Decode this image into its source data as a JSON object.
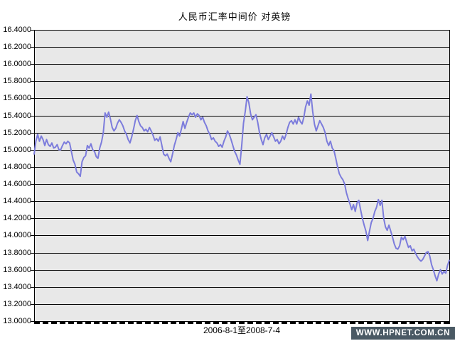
{
  "title": "人民币汇率中间价  对英镑",
  "x_axis_label": "2006-8-1至2008-7-4",
  "watermark": "WWW.HPNET.COM.CN",
  "colors": {
    "line": "#7c7cdc",
    "plot_bg": "#e8e8e8",
    "grid": "#000000",
    "frame": "#000000",
    "watermark_bg": "#4a5964",
    "watermark_text": "#ffffff"
  },
  "y_axis_labels": [
    "16.4000",
    "16.2000",
    "16.0000",
    "15.8000",
    "15.6000",
    "15.4000",
    "15.2000",
    "15.0000",
    "14.8000",
    "14.6000",
    "14.4000",
    "14.2000",
    "14.0000",
    "13.8000",
    "13.6000",
    "13.4000",
    "13.2000",
    "13.0000"
  ],
  "chart_data": {
    "type": "line",
    "title": "人民币汇率中间价  对英镑",
    "xlabel": "2006-8-1至2008-7-4",
    "ylabel": "",
    "ylim": [
      13.0,
      16.4
    ],
    "ytick_step": 0.2,
    "grid": "horizontal",
    "legend": "none",
    "x_unit": "trading days from 2006-8-1 to 2008-7-4 (uniformly spaced samples)",
    "series": [
      {
        "name": "人民币汇率中间价(对英镑)",
        "values": [
          14.95,
          15.1,
          15.18,
          15.1,
          15.16,
          15.12,
          15.05,
          15.12,
          15.06,
          15.04,
          15.08,
          15.02,
          15.03,
          15.06,
          15.0,
          15.0,
          15.05,
          15.09,
          15.07,
          15.1,
          15.08,
          14.98,
          14.88,
          14.83,
          14.74,
          14.72,
          14.69,
          14.86,
          14.91,
          14.93,
          15.05,
          15.02,
          15.07,
          15.0,
          14.98,
          14.92,
          14.9,
          15.02,
          15.09,
          15.2,
          15.43,
          15.38,
          15.44,
          15.36,
          15.26,
          15.22,
          15.25,
          15.31,
          15.35,
          15.32,
          15.28,
          15.22,
          15.18,
          15.12,
          15.08,
          15.15,
          15.24,
          15.34,
          15.4,
          15.33,
          15.28,
          15.26,
          15.22,
          15.24,
          15.21,
          15.26,
          15.22,
          15.17,
          15.11,
          15.13,
          15.1,
          15.15,
          15.05,
          14.95,
          14.93,
          14.95,
          14.9,
          14.86,
          14.95,
          15.05,
          15.12,
          15.2,
          15.16,
          15.24,
          15.33,
          15.25,
          15.32,
          15.38,
          15.43,
          15.41,
          15.43,
          15.38,
          15.42,
          15.4,
          15.35,
          15.38,
          15.32,
          15.28,
          15.22,
          15.18,
          15.12,
          15.14,
          15.1,
          15.08,
          15.04,
          15.06,
          15.03,
          15.1,
          15.15,
          15.22,
          15.18,
          15.12,
          15.05,
          14.98,
          14.94,
          14.88,
          14.83,
          15.05,
          15.31,
          15.45,
          15.62,
          15.55,
          15.42,
          15.35,
          15.38,
          15.41,
          15.32,
          15.2,
          15.12,
          15.06,
          15.14,
          15.18,
          15.12,
          15.16,
          15.2,
          15.15,
          15.1,
          15.12,
          15.07,
          15.1,
          15.16,
          15.12,
          15.18,
          15.26,
          15.32,
          15.34,
          15.3,
          15.35,
          15.3,
          15.38,
          15.33,
          15.3,
          15.38,
          15.5,
          15.57,
          15.52,
          15.65,
          15.45,
          15.3,
          15.22,
          15.28,
          15.34,
          15.3,
          15.26,
          15.2,
          15.1,
          15.05,
          15.1,
          15.02,
          14.99,
          14.9,
          14.8,
          14.72,
          14.68,
          14.65,
          14.6,
          14.5,
          14.43,
          14.37,
          14.3,
          14.36,
          14.28,
          14.38,
          14.41,
          14.3,
          14.2,
          14.12,
          14.05,
          13.94,
          14.05,
          14.15,
          14.2,
          14.28,
          14.33,
          14.42,
          14.35,
          14.41,
          14.2,
          14.1,
          14.06,
          14.12,
          14.05,
          13.98,
          13.9,
          13.85,
          13.84,
          13.88,
          13.98,
          13.95,
          13.99,
          13.92,
          13.86,
          13.88,
          13.82,
          13.84,
          13.79,
          13.75,
          13.72,
          13.7,
          13.72,
          13.76,
          13.8,
          13.81,
          13.76,
          13.66,
          13.6,
          13.53,
          13.47,
          13.55,
          13.6,
          13.55,
          13.58,
          13.56,
          13.65,
          13.71
        ]
      }
    ]
  }
}
